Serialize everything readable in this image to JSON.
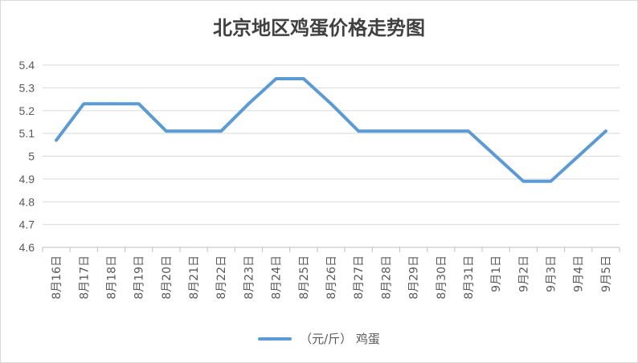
{
  "chart_data": {
    "type": "line",
    "title": "北京地区鸡蛋价格走势图",
    "categories": [
      "8月16日",
      "8月17日",
      "8月18日",
      "8月19日",
      "8月20日",
      "8月21日",
      "8月22日",
      "8月23日",
      "8月24日",
      "8月25日",
      "8月26日",
      "8月27日",
      "8月28日",
      "8月29日",
      "8月30日",
      "8月31日",
      "9月1日",
      "9月2日",
      "9月3日",
      "9月4日",
      "9月5日"
    ],
    "series": [
      {
        "name": "（元/斤） 鸡蛋",
        "color": "#5b9bd5",
        "values": [
          5.07,
          5.23,
          5.23,
          5.23,
          5.11,
          5.11,
          5.11,
          5.23,
          5.34,
          5.34,
          5.23,
          5.11,
          5.11,
          5.11,
          5.11,
          5.11,
          5.0,
          4.89,
          4.89,
          5.0,
          5.11
        ]
      }
    ],
    "yticks": [
      "4.6",
      "4.7",
      "4.8",
      "4.9",
      "5",
      "5.1",
      "5.2",
      "5.3",
      "5.4"
    ],
    "ylim": [
      4.6,
      5.4
    ],
    "grid": true,
    "legend_position": "bottom",
    "xlabel": "",
    "ylabel": ""
  }
}
